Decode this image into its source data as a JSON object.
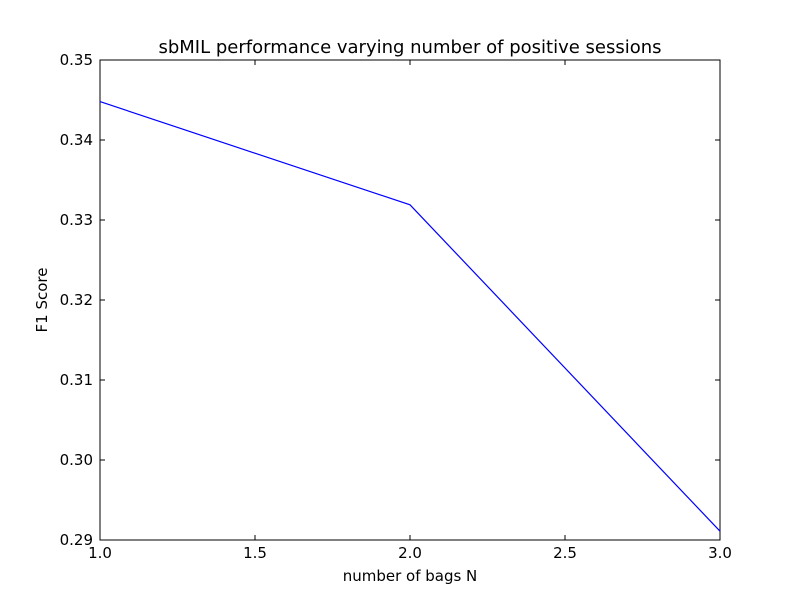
{
  "chart_data": {
    "type": "line",
    "title": "sbMIL performance varying number of positive sessions",
    "xlabel": "number of bags N",
    "ylabel": "F1 Score",
    "xlim": [
      1.0,
      3.0
    ],
    "ylim": [
      0.29,
      0.35
    ],
    "xticks": [
      "1.0",
      "1.5",
      "2.0",
      "2.5",
      "3.0"
    ],
    "yticks": [
      "0.29",
      "0.30",
      "0.31",
      "0.32",
      "0.33",
      "0.34",
      "0.35"
    ],
    "grid": false,
    "series": [
      {
        "color": "#0000ff",
        "x": [
          1.0,
          2.0,
          3.0
        ],
        "y": [
          0.3448,
          0.3319,
          0.2911
        ]
      }
    ]
  }
}
